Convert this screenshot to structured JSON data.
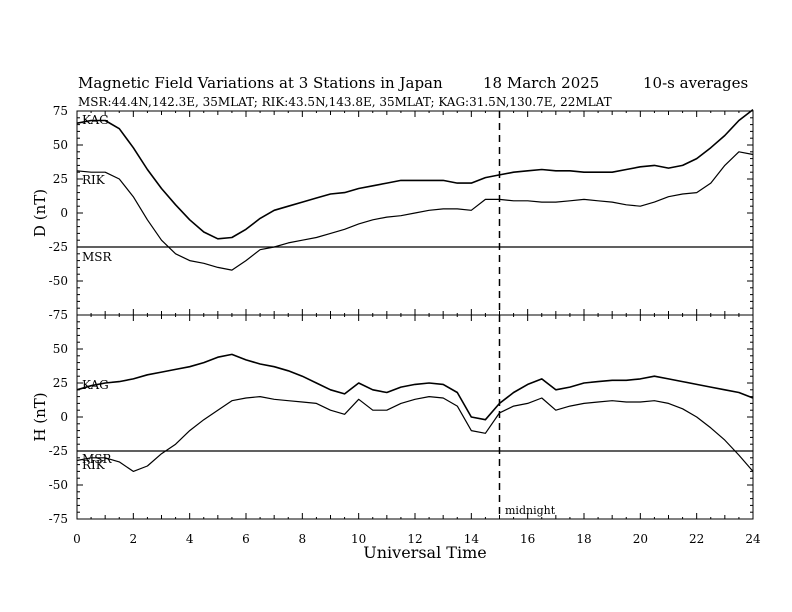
{
  "header": {
    "title": "Magnetic Field Variations at 3 Stations in Japan",
    "date": "18 March   2025",
    "averaging": "10-s averages",
    "stations_line": "MSR:44.4N,142.3E, 35MLAT;  RIK:43.5N,143.8E, 35MLAT;  KAG:31.5N,130.7E, 22MLAT"
  },
  "colors": {
    "ink": "#000000",
    "background": "#ffffff"
  },
  "chart_data": [
    {
      "type": "line",
      "ylabel": "D (nT)",
      "ylim": [
        -75,
        75
      ],
      "yticks": [
        75,
        50,
        25,
        0,
        -25,
        -50,
        -75
      ],
      "xlim": [
        0,
        24
      ],
      "series": [
        {
          "name": "KAG",
          "x": [
            0,
            0.5,
            1,
            1.5,
            2,
            2.5,
            3,
            3.5,
            4,
            4.5,
            5,
            5.5,
            6,
            6.5,
            7,
            7.5,
            8,
            8.5,
            9,
            9.5,
            10,
            10.5,
            11,
            11.5,
            12,
            12.5,
            13,
            13.5,
            14,
            14.5,
            15,
            15.5,
            16,
            16.5,
            17,
            17.5,
            18,
            18.5,
            19,
            19.5,
            20,
            20.5,
            21,
            21.5,
            22,
            22.5,
            23,
            23.5,
            24
          ],
          "values": [
            66,
            68,
            68,
            62,
            48,
            32,
            18,
            6,
            -5,
            -14,
            -19,
            -18,
            -12,
            -4,
            2,
            5,
            8,
            11,
            14,
            15,
            18,
            20,
            22,
            24,
            24,
            24,
            24,
            22,
            22,
            26,
            28,
            30,
            31,
            32,
            31,
            31,
            30,
            30,
            30,
            32,
            34,
            35,
            33,
            35,
            40,
            48,
            57,
            68,
            76
          ]
        },
        {
          "name": "RIK",
          "x": [
            0,
            0.5,
            1,
            1.5,
            2,
            2.5,
            3,
            3.5,
            4,
            4.5,
            5,
            5.5,
            6,
            6.5,
            7,
            7.5,
            8,
            8.5,
            9,
            9.5,
            10,
            10.5,
            11,
            11.5,
            12,
            12.5,
            13,
            13.5,
            14,
            14.5,
            15,
            15.5,
            16,
            16.5,
            17,
            17.5,
            18,
            18.5,
            19,
            19.5,
            20,
            20.5,
            21,
            21.5,
            22,
            22.5,
            23,
            23.5,
            24
          ],
          "values": [
            31,
            30,
            30,
            25,
            12,
            -5,
            -20,
            -30,
            -35,
            -37,
            -40,
            -42,
            -35,
            -27,
            -25,
            -22,
            -20,
            -18,
            -15,
            -12,
            -8,
            -5,
            -3,
            -2,
            0,
            2,
            3,
            3,
            2,
            10,
            10,
            9,
            9,
            8,
            8,
            9,
            10,
            9,
            8,
            6,
            5,
            8,
            12,
            14,
            15,
            22,
            35,
            45,
            43
          ]
        },
        {
          "name": "MSR",
          "x": [
            0,
            24
          ],
          "values": [
            -25,
            -25
          ]
        }
      ],
      "annotations": [
        "KAG",
        "RIK",
        "MSR"
      ]
    },
    {
      "type": "line",
      "ylabel": "H (nT)",
      "ylim": [
        -75,
        75
      ],
      "yticks": [
        50,
        25,
        0,
        -25,
        -50,
        -75
      ],
      "xlim": [
        0,
        24
      ],
      "xticks": [
        0,
        2,
        4,
        6,
        8,
        10,
        12,
        14,
        16,
        18,
        20,
        22,
        24
      ],
      "xlabel": "Universal Time",
      "series": [
        {
          "name": "KAG",
          "x": [
            0,
            0.5,
            1,
            1.5,
            2,
            2.5,
            3,
            3.5,
            4,
            4.5,
            5,
            5.5,
            6,
            6.5,
            7,
            7.5,
            8,
            8.5,
            9,
            9.5,
            10,
            10.5,
            11,
            11.5,
            12,
            12.5,
            13,
            13.5,
            14,
            14.5,
            15,
            15.5,
            16,
            16.5,
            17,
            17.5,
            18,
            18.5,
            19,
            19.5,
            20,
            20.5,
            21,
            21.5,
            22,
            22.5,
            23,
            23.5,
            24
          ],
          "values": [
            20,
            23,
            25,
            26,
            28,
            31,
            33,
            35,
            37,
            40,
            44,
            46,
            42,
            39,
            37,
            34,
            30,
            25,
            20,
            17,
            25,
            20,
            18,
            22,
            24,
            25,
            24,
            18,
            0,
            -2,
            10,
            18,
            24,
            28,
            20,
            22,
            25,
            26,
            27,
            27,
            28,
            30,
            28,
            26,
            24,
            22,
            20,
            18,
            14
          ]
        },
        {
          "name": "RIK",
          "x": [
            0,
            0.5,
            1,
            1.5,
            2,
            2.5,
            3,
            3.5,
            4,
            4.5,
            5,
            5.5,
            6,
            6.5,
            7,
            7.5,
            8,
            8.5,
            9,
            9.5,
            10,
            10.5,
            11,
            11.5,
            12,
            12.5,
            13,
            13.5,
            14,
            14.5,
            15,
            15.5,
            16,
            16.5,
            17,
            17.5,
            18,
            18.5,
            19,
            19.5,
            20,
            20.5,
            21,
            21.5,
            22,
            22.5,
            23,
            23.5,
            24
          ],
          "values": [
            -32,
            -30,
            -30,
            -33,
            -40,
            -36,
            -27,
            -20,
            -10,
            -2,
            5,
            12,
            14,
            15,
            13,
            12,
            11,
            10,
            5,
            2,
            13,
            5,
            5,
            10,
            13,
            15,
            14,
            8,
            -10,
            -12,
            3,
            8,
            10,
            14,
            5,
            8,
            10,
            11,
            12,
            11,
            11,
            12,
            10,
            6,
            0,
            -8,
            -17,
            -28,
            -40
          ]
        },
        {
          "name": "MSR",
          "x": [
            0,
            24
          ],
          "values": [
            -25,
            -25
          ]
        }
      ],
      "annotations": [
        "KAG",
        "MSR",
        "RIK",
        "midnight"
      ]
    }
  ],
  "markers": {
    "midnight_ut": 15,
    "midnight_label": "midnight"
  }
}
